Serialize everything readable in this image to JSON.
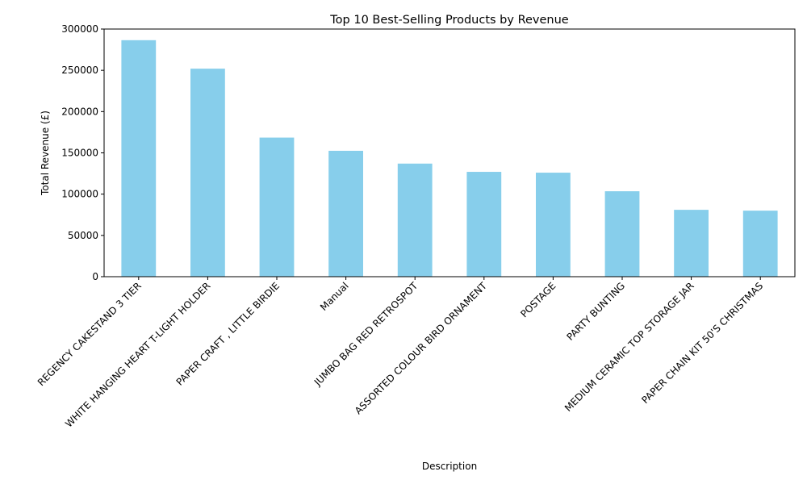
{
  "chart_data": {
    "type": "bar",
    "title": "Top 10 Best-Selling Products by Revenue",
    "xlabel": "Description",
    "ylabel": "Total Revenue (£)",
    "categories": [
      "REGENCY CAKESTAND 3 TIER",
      "WHITE HANGING HEART T-LIGHT HOLDER",
      "PAPER CRAFT , LITTLE BIRDIE",
      "Manual",
      "JUMBO BAG RED RETROSPOT",
      "ASSORTED COLOUR BIRD ORNAMENT",
      "POSTAGE",
      "PARTY BUNTING",
      "MEDIUM CERAMIC TOP STORAGE JAR",
      "PAPER CHAIN KIT 50'S CHRISTMAS"
    ],
    "values": [
      286500,
      252000,
      168500,
      152500,
      137000,
      127000,
      126000,
      103500,
      81000,
      80000
    ],
    "ylim": [
      0,
      300000
    ],
    "yticks": [
      0,
      50000,
      100000,
      150000,
      200000,
      250000,
      300000
    ],
    "ytick_labels": [
      "0",
      "50000",
      "100000",
      "150000",
      "200000",
      "250000",
      "300000"
    ],
    "grid": false,
    "bar_color": "#87ceeb"
  }
}
